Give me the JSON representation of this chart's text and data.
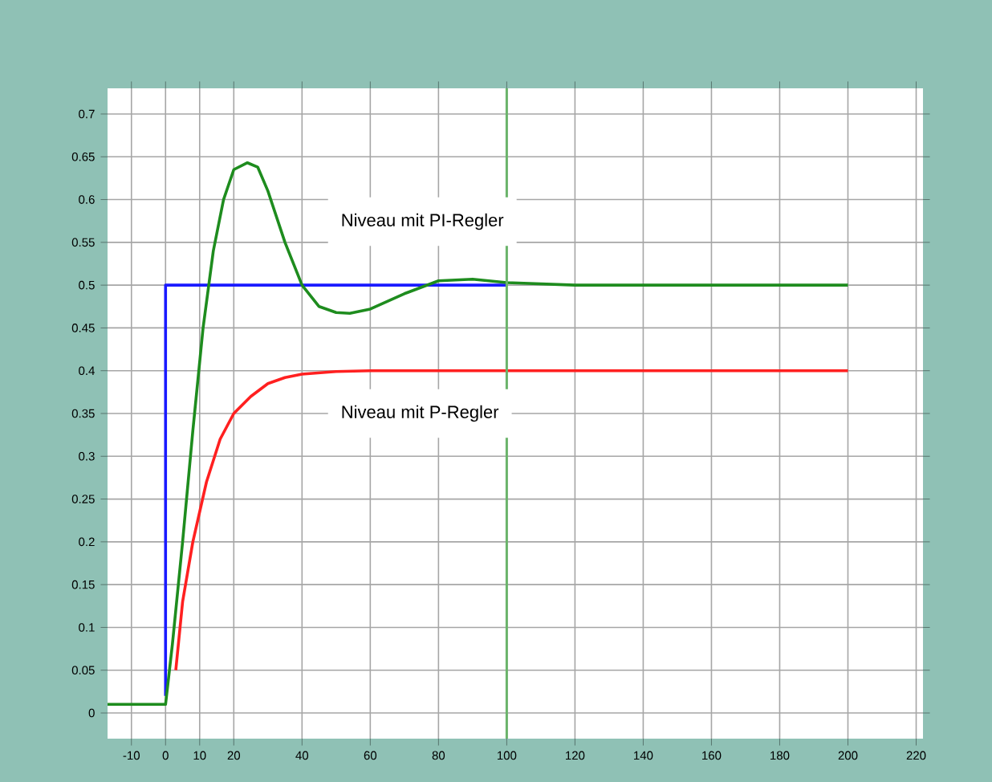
{
  "chart_data": {
    "type": "line",
    "xlim": [
      -17,
      222
    ],
    "ylim": [
      -0.03,
      0.73
    ],
    "xticks": [
      -10,
      0,
      10,
      20,
      40,
      60,
      80,
      100,
      120,
      140,
      160,
      180,
      200,
      220
    ],
    "yticks": [
      0,
      0.05,
      0.1,
      0.15,
      0.2,
      0.25,
      0.3,
      0.35,
      0.4,
      0.45,
      0.5,
      0.55,
      0.6,
      0.65,
      0.7
    ],
    "grid": true,
    "series": [
      {
        "color": "#1a1aff",
        "x": [
          0,
          0,
          100
        ],
        "values": [
          0.02,
          0.5,
          0.5
        ]
      },
      {
        "color": "#ff2020",
        "x": [
          3,
          5,
          8,
          12,
          16,
          20,
          25,
          30,
          35,
          40,
          50,
          60,
          200
        ],
        "values": [
          0.05,
          0.13,
          0.2,
          0.27,
          0.32,
          0.35,
          0.37,
          0.385,
          0.392,
          0.396,
          0.399,
          0.4,
          0.4
        ]
      },
      {
        "color": "#1e8c1e",
        "x": [
          -17,
          0,
          2,
          5,
          8,
          11,
          14,
          17,
          20,
          24,
          27,
          30,
          35,
          40,
          45,
          50,
          54,
          60,
          70,
          80,
          90,
          100,
          120,
          200
        ],
        "values": [
          0.01,
          0.01,
          0.08,
          0.2,
          0.33,
          0.45,
          0.54,
          0.6,
          0.635,
          0.643,
          0.638,
          0.61,
          0.55,
          0.5,
          0.475,
          0.468,
          0.467,
          0.472,
          0.49,
          0.505,
          0.507,
          0.503,
          0.5,
          0.5
        ]
      }
    ],
    "ref_lines": [
      {
        "axis": "x",
        "value": 100,
        "color": "#6ab46a"
      }
    ],
    "annotations": [
      "Niveau mit PI-Regler",
      "Niveau mit P-Regler"
    ]
  }
}
